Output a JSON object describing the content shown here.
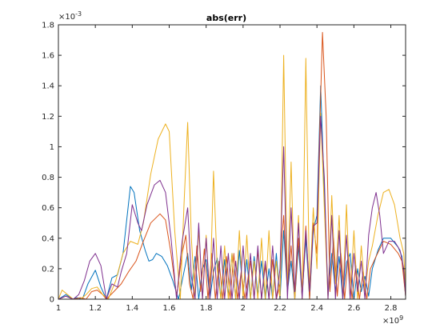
{
  "chart_data": {
    "type": "line",
    "title": "abs(err)",
    "xlabel": "",
    "ylabel": "",
    "xlim": [
      1,
      2.88
    ],
    "ylim": [
      0,
      1.8
    ],
    "x_exponent_label": "×10",
    "x_exponent_power": "9",
    "y_exponent_label": "×10",
    "y_exponent_power": "-3",
    "x_ticks": [
      "1",
      "1.2",
      "1.4",
      "1.6",
      "1.8",
      "2",
      "2.2",
      "2.4",
      "2.6",
      "2.8"
    ],
    "y_ticks": [
      "0",
      "0.2",
      "0.4",
      "0.6",
      "0.8",
      "1",
      "1.2",
      "1.4",
      "1.6",
      "1.8"
    ],
    "grid": false,
    "series": [
      {
        "color": "#0072BD",
        "points": [
          [
            1.0,
            0.0
          ],
          [
            1.04,
            0.03
          ],
          [
            1.08,
            0.0
          ],
          [
            1.1,
            0.01
          ],
          [
            1.13,
            0.0
          ],
          [
            1.16,
            0.1
          ],
          [
            1.2,
            0.19
          ],
          [
            1.23,
            0.08
          ],
          [
            1.26,
            0.0
          ],
          [
            1.29,
            0.14
          ],
          [
            1.32,
            0.16
          ],
          [
            1.35,
            0.3
          ],
          [
            1.39,
            0.74
          ],
          [
            1.41,
            0.7
          ],
          [
            1.44,
            0.45
          ],
          [
            1.47,
            0.32
          ],
          [
            1.49,
            0.25
          ],
          [
            1.51,
            0.26
          ],
          [
            1.53,
            0.3
          ],
          [
            1.56,
            0.28
          ],
          [
            1.59,
            0.22
          ],
          [
            1.62,
            0.12
          ],
          [
            1.65,
            0.0
          ],
          [
            1.68,
            0.18
          ],
          [
            1.7,
            0.3
          ],
          [
            1.72,
            0.06
          ],
          [
            1.74,
            0.28
          ],
          [
            1.76,
            0.0
          ],
          [
            1.78,
            0.2
          ],
          [
            1.8,
            0.26
          ],
          [
            1.82,
            0.0
          ],
          [
            1.84,
            0.18
          ],
          [
            1.86,
            0.27
          ],
          [
            1.88,
            0.0
          ],
          [
            1.9,
            0.26
          ],
          [
            1.92,
            0.02
          ],
          [
            1.94,
            0.3
          ],
          [
            1.96,
            0.0
          ],
          [
            1.98,
            0.32
          ],
          [
            2.0,
            0.05
          ],
          [
            2.02,
            0.26
          ],
          [
            2.04,
            0.0
          ],
          [
            2.06,
            0.28
          ],
          [
            2.08,
            0.03
          ],
          [
            2.1,
            0.25
          ],
          [
            2.12,
            0.0
          ],
          [
            2.14,
            0.2
          ],
          [
            2.16,
            0.0
          ],
          [
            2.18,
            0.3
          ],
          [
            2.2,
            0.0
          ],
          [
            2.22,
            0.45
          ],
          [
            2.24,
            0.05
          ],
          [
            2.26,
            0.25
          ],
          [
            2.28,
            0.0
          ],
          [
            2.3,
            0.35
          ],
          [
            2.32,
            0.02
          ],
          [
            2.34,
            0.4
          ],
          [
            2.36,
            0.0
          ],
          [
            2.38,
            0.45
          ],
          [
            2.4,
            0.55
          ],
          [
            2.42,
            1.4
          ],
          [
            2.44,
            0.7
          ],
          [
            2.46,
            0.02
          ],
          [
            2.48,
            0.3
          ],
          [
            2.5,
            0.05
          ],
          [
            2.52,
            0.28
          ],
          [
            2.54,
            0.0
          ],
          [
            2.56,
            0.24
          ],
          [
            2.58,
            0.3
          ],
          [
            2.6,
            0.0
          ],
          [
            2.62,
            0.2
          ],
          [
            2.64,
            0.05
          ],
          [
            2.66,
            0.15
          ],
          [
            2.68,
            0.02
          ],
          [
            2.7,
            0.2
          ],
          [
            2.73,
            0.32
          ],
          [
            2.76,
            0.4
          ],
          [
            2.8,
            0.4
          ],
          [
            2.84,
            0.34
          ],
          [
            2.86,
            0.28
          ],
          [
            2.88,
            0.02
          ]
        ]
      },
      {
        "color": "#D95319",
        "points": [
          [
            1.0,
            0.0
          ],
          [
            1.04,
            0.02
          ],
          [
            1.08,
            0.0
          ],
          [
            1.12,
            0.01
          ],
          [
            1.15,
            0.0
          ],
          [
            1.18,
            0.05
          ],
          [
            1.21,
            0.06
          ],
          [
            1.24,
            0.03
          ],
          [
            1.26,
            0.0
          ],
          [
            1.3,
            0.05
          ],
          [
            1.34,
            0.1
          ],
          [
            1.38,
            0.18
          ],
          [
            1.42,
            0.25
          ],
          [
            1.46,
            0.38
          ],
          [
            1.5,
            0.5
          ],
          [
            1.55,
            0.56
          ],
          [
            1.58,
            0.52
          ],
          [
            1.61,
            0.3
          ],
          [
            1.64,
            0.02
          ],
          [
            1.67,
            0.3
          ],
          [
            1.69,
            0.42
          ],
          [
            1.71,
            0.1
          ],
          [
            1.73,
            0.0
          ],
          [
            1.75,
            0.35
          ],
          [
            1.77,
            0.05
          ],
          [
            1.79,
            0.33
          ],
          [
            1.81,
            0.0
          ],
          [
            1.83,
            0.3
          ],
          [
            1.85,
            0.0
          ],
          [
            1.87,
            0.25
          ],
          [
            1.89,
            0.0
          ],
          [
            1.91,
            0.28
          ],
          [
            1.93,
            0.0
          ],
          [
            1.95,
            0.3
          ],
          [
            1.97,
            0.0
          ],
          [
            1.99,
            0.18
          ],
          [
            2.01,
            0.0
          ],
          [
            2.04,
            0.25
          ],
          [
            2.06,
            0.0
          ],
          [
            2.08,
            0.32
          ],
          [
            2.1,
            0.0
          ],
          [
            2.12,
            0.22
          ],
          [
            2.14,
            0.0
          ],
          [
            2.16,
            0.26
          ],
          [
            2.18,
            0.0
          ],
          [
            2.2,
            0.1
          ],
          [
            2.21,
            0.4
          ],
          [
            2.22,
            0.55
          ],
          [
            2.24,
            0.05
          ],
          [
            2.26,
            0.35
          ],
          [
            2.28,
            0.0
          ],
          [
            2.3,
            0.4
          ],
          [
            2.32,
            0.05
          ],
          [
            2.34,
            0.48
          ],
          [
            2.36,
            0.0
          ],
          [
            2.38,
            0.5
          ],
          [
            2.4,
            0.3
          ],
          [
            2.41,
            0.9
          ],
          [
            2.43,
            1.75
          ],
          [
            2.45,
            1.2
          ],
          [
            2.47,
            0.05
          ],
          [
            2.49,
            0.4
          ],
          [
            2.51,
            0.02
          ],
          [
            2.53,
            0.3
          ],
          [
            2.55,
            0.0
          ],
          [
            2.57,
            0.3
          ],
          [
            2.59,
            0.0
          ],
          [
            2.61,
            0.22
          ],
          [
            2.63,
            0.0
          ],
          [
            2.65,
            0.18
          ],
          [
            2.67,
            0.0
          ],
          [
            2.69,
            0.2
          ],
          [
            2.72,
            0.28
          ],
          [
            2.76,
            0.38
          ],
          [
            2.8,
            0.36
          ],
          [
            2.84,
            0.3
          ],
          [
            2.86,
            0.25
          ],
          [
            2.88,
            0.02
          ]
        ]
      },
      {
        "color": "#EDB120",
        "points": [
          [
            1.0,
            0.0
          ],
          [
            1.02,
            0.06
          ],
          [
            1.05,
            0.03
          ],
          [
            1.08,
            0.0
          ],
          [
            1.12,
            0.0
          ],
          [
            1.15,
            0.03
          ],
          [
            1.18,
            0.07
          ],
          [
            1.21,
            0.08
          ],
          [
            1.24,
            0.03
          ],
          [
            1.27,
            0.0
          ],
          [
            1.31,
            0.12
          ],
          [
            1.35,
            0.3
          ],
          [
            1.39,
            0.38
          ],
          [
            1.43,
            0.36
          ],
          [
            1.46,
            0.5
          ],
          [
            1.5,
            0.82
          ],
          [
            1.54,
            1.05
          ],
          [
            1.58,
            1.15
          ],
          [
            1.6,
            1.1
          ],
          [
            1.63,
            0.45
          ],
          [
            1.66,
            0.0
          ],
          [
            1.68,
            0.62
          ],
          [
            1.7,
            1.16
          ],
          [
            1.72,
            0.4
          ],
          [
            1.74,
            0.0
          ],
          [
            1.76,
            0.46
          ],
          [
            1.78,
            0.0
          ],
          [
            1.8,
            0.42
          ],
          [
            1.82,
            0.0
          ],
          [
            1.84,
            0.84
          ],
          [
            1.86,
            0.2
          ],
          [
            1.88,
            0.0
          ],
          [
            1.9,
            0.35
          ],
          [
            1.92,
            0.0
          ],
          [
            1.94,
            0.3
          ],
          [
            1.96,
            0.0
          ],
          [
            1.98,
            0.45
          ],
          [
            2.0,
            0.0
          ],
          [
            2.02,
            0.42
          ],
          [
            2.04,
            0.0
          ],
          [
            2.06,
            0.25
          ],
          [
            2.08,
            0.0
          ],
          [
            2.1,
            0.4
          ],
          [
            2.12,
            0.0
          ],
          [
            2.14,
            0.45
          ],
          [
            2.16,
            0.0
          ],
          [
            2.18,
            0.25
          ],
          [
            2.2,
            0.0
          ],
          [
            2.22,
            1.6
          ],
          [
            2.24,
            0.05
          ],
          [
            2.26,
            0.9
          ],
          [
            2.28,
            0.0
          ],
          [
            2.3,
            0.55
          ],
          [
            2.32,
            0.0
          ],
          [
            2.34,
            1.58
          ],
          [
            2.36,
            0.05
          ],
          [
            2.38,
            0.6
          ],
          [
            2.4,
            0.2
          ],
          [
            2.42,
            1.22
          ],
          [
            2.44,
            0.6
          ],
          [
            2.46,
            0.0
          ],
          [
            2.48,
            0.68
          ],
          [
            2.5,
            0.1
          ],
          [
            2.52,
            0.55
          ],
          [
            2.54,
            0.0
          ],
          [
            2.56,
            0.62
          ],
          [
            2.58,
            0.0
          ],
          [
            2.6,
            0.45
          ],
          [
            2.62,
            0.0
          ],
          [
            2.64,
            0.35
          ],
          [
            2.66,
            0.05
          ],
          [
            2.68,
            0.25
          ],
          [
            2.7,
            0.35
          ],
          [
            2.73,
            0.55
          ],
          [
            2.76,
            0.7
          ],
          [
            2.79,
            0.72
          ],
          [
            2.82,
            0.62
          ],
          [
            2.85,
            0.4
          ],
          [
            2.87,
            0.3
          ],
          [
            2.88,
            0.05
          ]
        ]
      },
      {
        "color": "#7E2F8E",
        "points": [
          [
            1.0,
            0.0
          ],
          [
            1.04,
            0.02
          ],
          [
            1.08,
            0.0
          ],
          [
            1.11,
            0.03
          ],
          [
            1.14,
            0.12
          ],
          [
            1.17,
            0.25
          ],
          [
            1.2,
            0.3
          ],
          [
            1.23,
            0.22
          ],
          [
            1.26,
            0.0
          ],
          [
            1.29,
            0.1
          ],
          [
            1.32,
            0.08
          ],
          [
            1.34,
            0.18
          ],
          [
            1.37,
            0.3
          ],
          [
            1.4,
            0.62
          ],
          [
            1.43,
            0.5
          ],
          [
            1.45,
            0.45
          ],
          [
            1.48,
            0.62
          ],
          [
            1.52,
            0.75
          ],
          [
            1.55,
            0.78
          ],
          [
            1.58,
            0.7
          ],
          [
            1.61,
            0.4
          ],
          [
            1.64,
            0.0
          ],
          [
            1.67,
            0.38
          ],
          [
            1.7,
            0.6
          ],
          [
            1.72,
            0.15
          ],
          [
            1.74,
            0.0
          ],
          [
            1.76,
            0.5
          ],
          [
            1.78,
            0.0
          ],
          [
            1.8,
            0.4
          ],
          [
            1.82,
            0.0
          ],
          [
            1.84,
            0.4
          ],
          [
            1.86,
            0.0
          ],
          [
            1.88,
            0.35
          ],
          [
            1.9,
            0.0
          ],
          [
            1.92,
            0.3
          ],
          [
            1.94,
            0.0
          ],
          [
            1.96,
            0.25
          ],
          [
            1.98,
            0.0
          ],
          [
            2.0,
            0.35
          ],
          [
            2.02,
            0.0
          ],
          [
            2.04,
            0.3
          ],
          [
            2.06,
            0.0
          ],
          [
            2.08,
            0.35
          ],
          [
            2.1,
            0.0
          ],
          [
            2.12,
            0.25
          ],
          [
            2.14,
            0.0
          ],
          [
            2.16,
            0.35
          ],
          [
            2.18,
            0.0
          ],
          [
            2.2,
            0.2
          ],
          [
            2.22,
            1.0
          ],
          [
            2.24,
            0.0
          ],
          [
            2.26,
            0.6
          ],
          [
            2.28,
            0.05
          ],
          [
            2.3,
            0.5
          ],
          [
            2.32,
            0.0
          ],
          [
            2.34,
            0.45
          ],
          [
            2.36,
            0.05
          ],
          [
            2.38,
            0.48
          ],
          [
            2.4,
            0.5
          ],
          [
            2.42,
            1.2
          ],
          [
            2.44,
            0.8
          ],
          [
            2.46,
            0.0
          ],
          [
            2.48,
            0.55
          ],
          [
            2.5,
            0.0
          ],
          [
            2.52,
            0.45
          ],
          [
            2.54,
            0.0
          ],
          [
            2.56,
            0.42
          ],
          [
            2.58,
            0.0
          ],
          [
            2.6,
            0.3
          ],
          [
            2.62,
            0.05
          ],
          [
            2.64,
            0.25
          ],
          [
            2.66,
            0.0
          ],
          [
            2.68,
            0.42
          ],
          [
            2.7,
            0.6
          ],
          [
            2.72,
            0.7
          ],
          [
            2.74,
            0.55
          ],
          [
            2.76,
            0.3
          ],
          [
            2.79,
            0.38
          ],
          [
            2.82,
            0.38
          ],
          [
            2.85,
            0.32
          ],
          [
            2.87,
            0.2
          ],
          [
            2.88,
            0.02
          ]
        ]
      }
    ]
  }
}
